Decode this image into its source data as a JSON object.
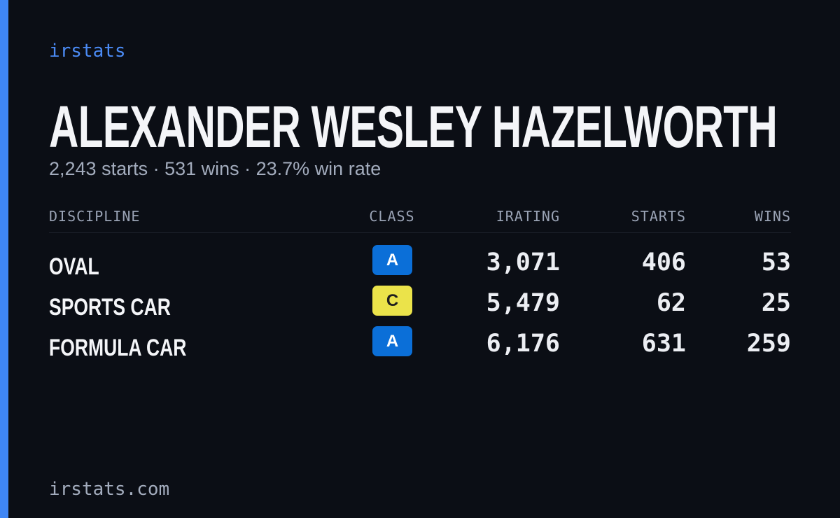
{
  "brand": "irstats",
  "name": "ALEXANDER WESLEY HAZELWORTH",
  "summary": "2,243 starts · 531 wins · 23.7% win rate",
  "table": {
    "headers": [
      "DISCIPLINE",
      "CLASS",
      "IRATING",
      "STARTS",
      "WINS"
    ],
    "rows": [
      {
        "discipline": "OVAL",
        "class": "A",
        "class_color": "#0b6fd8",
        "irating": "3,071",
        "starts": "406",
        "wins": "53"
      },
      {
        "discipline": "SPORTS CAR",
        "class": "C",
        "class_color": "#ebe34a",
        "irating": "5,479",
        "starts": "62",
        "wins": "25"
      },
      {
        "discipline": "FORMULA CAR",
        "class": "A",
        "class_color": "#0b6fd8",
        "irating": "6,176",
        "starts": "631",
        "wins": "259"
      }
    ]
  },
  "footer": "irstats.com"
}
